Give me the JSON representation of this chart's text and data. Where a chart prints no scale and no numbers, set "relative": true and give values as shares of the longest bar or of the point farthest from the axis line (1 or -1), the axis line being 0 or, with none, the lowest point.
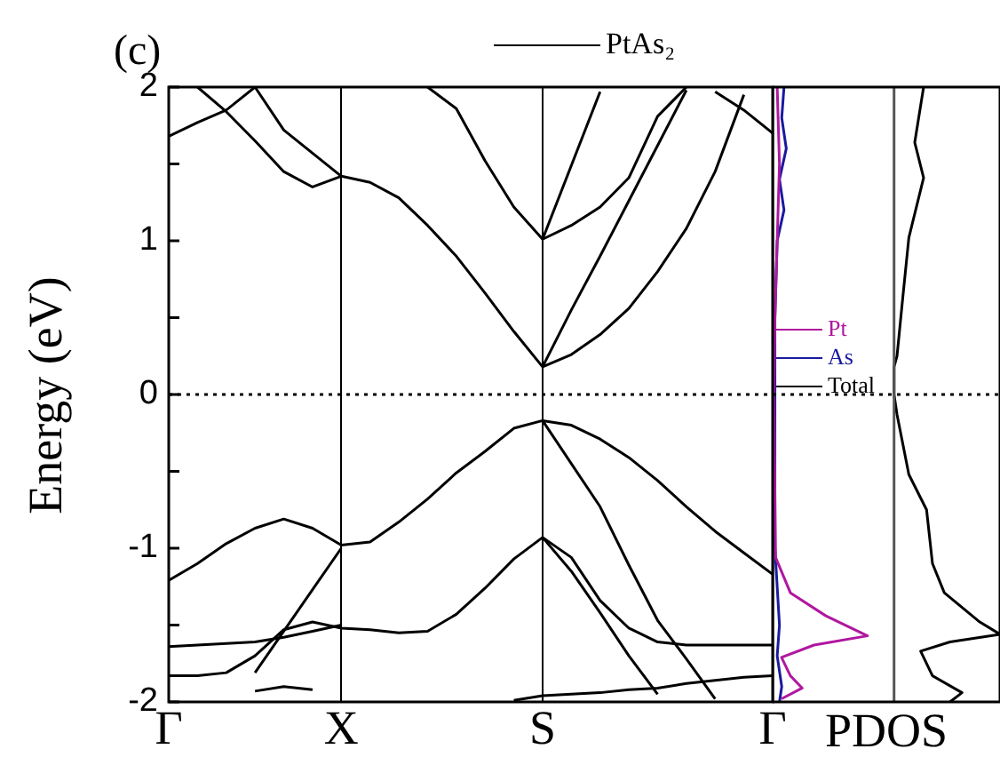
{
  "chart_data": [
    {
      "type": "line",
      "title": "(c)",
      "ylabel": "Energy (eV)",
      "legend": "top right",
      "grid": "x",
      "categories": [
        "Γ",
        null,
        null,
        null,
        null,
        null,
        "X",
        null,
        null,
        null,
        null,
        null,
        null,
        "S",
        null,
        null,
        null,
        null,
        null,
        null,
        null,
        "Γ"
      ],
      "ylim": [
        -2,
        2
      ],
      "yticks": [
        -2,
        {
          "value": -1.5,
          "label": null
        },
        -1,
        {
          "value": -0.5,
          "label": null
        },
        0,
        {
          "value": 0.5,
          "label": null
        },
        1,
        {
          "value": 1.5,
          "label": null
        },
        2
      ],
      "ref_lines": [
        {
          "axis": "y",
          "value": 0,
          "line_style": "dotted"
        }
      ],
      "series": [
        {
          "name": "PtAs₂",
          "color": "#000000",
          "values": [
            1.68,
            1.77,
            1.85,
            2.0,
            1.72,
            1.57,
            1.42,
            1.38,
            1.28,
            1.1,
            0.9,
            0.66,
            0.41,
            0.18,
            0.26,
            0.39,
            0.56,
            0.8,
            1.08,
            1.45,
            1.95,
            null
          ]
        },
        {
          "color": "#000000",
          "values": [
            null,
            2.0,
            1.84,
            1.65,
            1.45,
            1.35,
            1.42,
            null,
            null,
            null,
            null,
            null,
            null,
            null,
            null,
            null,
            null,
            null,
            null,
            null,
            null,
            null
          ]
        },
        {
          "color": "#000000",
          "values": [
            null,
            null,
            null,
            null,
            null,
            null,
            null,
            null,
            null,
            null,
            null,
            null,
            null,
            0.18,
            0.55,
            0.9,
            1.26,
            1.62,
            1.98,
            null,
            null,
            null
          ]
        },
        {
          "color": "#000000",
          "values": [
            null,
            null,
            null,
            null,
            null,
            null,
            null,
            null,
            null,
            2.0,
            1.86,
            1.52,
            1.22,
            1.01,
            1.1,
            1.22,
            1.41,
            1.81,
            2.0,
            null,
            null,
            null
          ]
        },
        {
          "color": "#000000",
          "values": [
            null,
            null,
            null,
            null,
            null,
            null,
            null,
            null,
            null,
            null,
            null,
            null,
            null,
            1.01,
            1.49,
            1.97,
            null,
            null,
            null,
            null,
            null,
            null
          ]
        },
        {
          "color": "#000000",
          "values": [
            null,
            null,
            null,
            null,
            null,
            null,
            null,
            null,
            null,
            null,
            null,
            null,
            null,
            null,
            null,
            null,
            null,
            null,
            null,
            1.97,
            1.85,
            1.7
          ]
        },
        {
          "color": "#000000",
          "values": [
            -1.21,
            -1.1,
            -0.97,
            -0.87,
            -0.81,
            -0.87,
            -0.98,
            -0.96,
            -0.83,
            -0.68,
            -0.51,
            -0.37,
            -0.22,
            -0.17,
            -0.2,
            -0.29,
            -0.41,
            -0.56,
            -0.73,
            -0.89,
            -1.03,
            -1.17
          ]
        },
        {
          "color": "#000000",
          "values": [
            null,
            null,
            null,
            null,
            null,
            null,
            null,
            null,
            null,
            null,
            null,
            null,
            null,
            -0.17,
            -0.45,
            -0.73,
            -1.11,
            -1.47,
            -1.72,
            -1.98,
            null,
            null
          ]
        },
        {
          "color": "#000000",
          "values": [
            -1.83,
            -1.83,
            -1.81,
            -1.7,
            -1.53,
            -1.48,
            -1.52,
            -1.53,
            -1.55,
            -1.54,
            -1.43,
            -1.26,
            -1.07,
            -0.93,
            -1.06,
            -1.34,
            -1.52,
            -1.61,
            -1.63,
            -1.63,
            -1.63,
            -1.63
          ]
        },
        {
          "color": "#000000",
          "values": [
            null,
            null,
            null,
            null,
            null,
            null,
            null,
            null,
            null,
            null,
            null,
            null,
            null,
            -0.93,
            -1.15,
            -1.42,
            -1.7,
            -1.95,
            null,
            null,
            null,
            null
          ]
        },
        {
          "color": "#000000",
          "values": [
            null,
            null,
            null,
            null,
            null,
            null,
            null,
            null,
            null,
            null,
            null,
            null,
            -1.99,
            -1.96,
            -1.95,
            -1.94,
            -1.92,
            -1.91,
            -1.88,
            -1.86,
            -1.84,
            -1.83
          ]
        },
        {
          "color": "#000000",
          "values": [
            -1.64,
            -1.63,
            -1.62,
            -1.61,
            -1.58,
            -1.54,
            -1.5,
            null,
            null,
            null,
            null,
            null,
            null,
            null,
            null,
            null,
            null,
            null,
            null,
            null,
            null,
            null
          ]
        },
        {
          "color": "#000000",
          "values": [
            null,
            null,
            null,
            -1.81,
            -1.54,
            -1.27,
            -1.0,
            null,
            null,
            null,
            null,
            null,
            null,
            null,
            null,
            null,
            null,
            null,
            null,
            null,
            null,
            null
          ]
        },
        {
          "color": "#000000",
          "values": [
            null,
            null,
            null,
            -1.93,
            -1.9,
            -1.92,
            null,
            null,
            null,
            null,
            null,
            null,
            null,
            null,
            null,
            null,
            null,
            null,
            null,
            null,
            null,
            null
          ]
        }
      ]
    },
    {
      "type": "line",
      "xlabel": "PDOS",
      "relative": true,
      "orientation": "horizontal",
      "legend": "left",
      "tick_labels": false,
      "ylim": [
        -2,
        2
      ],
      "ref_lines": [
        {
          "axis": "y",
          "value": 0,
          "line_style": "dotted"
        },
        {
          "axis": "x",
          "value": 0.534,
          "color": "#555555"
        }
      ],
      "series": [
        {
          "name": "Pt",
          "color": "#b0179f",
          "x": [
            2,
            1.5,
            1.0,
            0.5,
            0,
            -1.06,
            -1.29,
            -1.44,
            -1.57,
            -1.63,
            -1.71,
            -1.83,
            -1.91,
            -1.98
          ],
          "values": [
            0.02,
            0.03,
            0.02,
            0.01,
            0.005,
            0.013,
            0.078,
            0.234,
            0.417,
            0.182,
            0.039,
            0.078,
            0.13,
            0.039
          ]
        },
        {
          "name": "As",
          "color": "#1a1aa0",
          "x": [
            2,
            1.8,
            1.6,
            1.4,
            1.2,
            1.0,
            0.5,
            0,
            -1,
            -1.5,
            -1.7,
            -1.9,
            -2
          ],
          "values": [
            0.05,
            0.04,
            0.06,
            0.03,
            0.05,
            0.02,
            0.01,
            0.01,
            0.01,
            0.03,
            0.02,
            0.04,
            0.03
          ]
        },
        {
          "name": "Total",
          "color": "#000000",
          "x": [
            2,
            1.64,
            1.41,
            1.02,
            0.64,
            0.25,
            0.18,
            0.0,
            -0.13,
            -0.52,
            -0.75,
            -1.1,
            -1.29,
            -1.48,
            -1.56,
            -1.61,
            -1.67,
            -1.83,
            -1.94,
            -2.0
          ],
          "values": [
            0.664,
            0.625,
            0.664,
            0.599,
            0.573,
            0.547,
            0.534,
            0.534,
            0.547,
            0.599,
            0.677,
            0.703,
            0.755,
            0.911,
            1.0,
            0.78,
            0.651,
            0.703,
            0.833,
            0.78
          ]
        }
      ]
    }
  ]
}
